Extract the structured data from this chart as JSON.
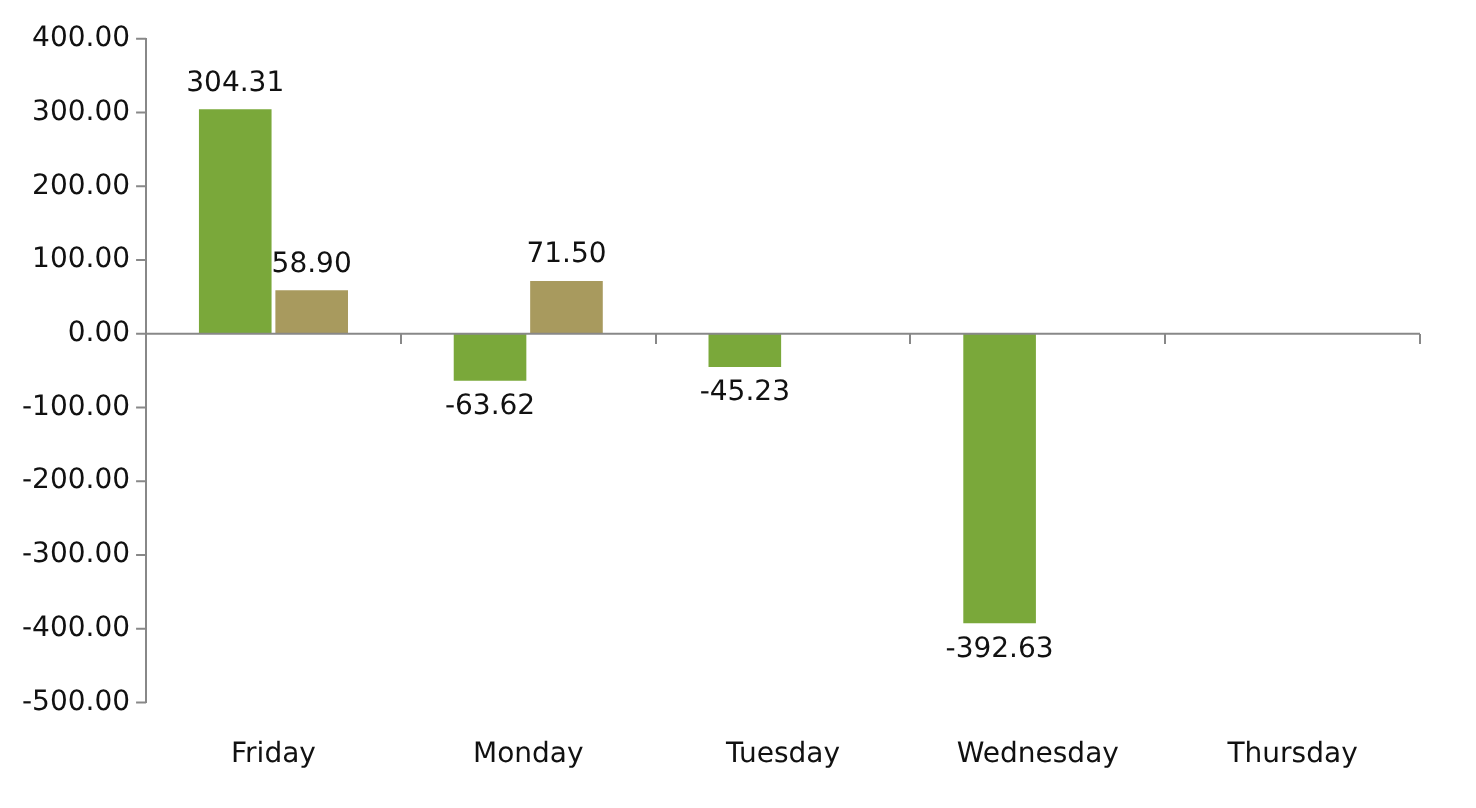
{
  "chart_data": {
    "type": "bar",
    "categories": [
      "Friday",
      "Monday",
      "Tuesday",
      "Wednesday",
      "Thursday"
    ],
    "series": [
      {
        "color": "#7aa83a",
        "values": [
          304.31,
          -63.62,
          -45.23,
          -392.63,
          null
        ],
        "value_labels": [
          "304.31",
          "-63.62",
          "-45.23",
          "-392.63",
          null
        ]
      },
      {
        "color": "#a89a5e",
        "values": [
          58.9,
          71.5,
          null,
          null,
          null
        ],
        "value_labels": [
          "58.90",
          "71.50",
          null,
          null,
          null
        ]
      }
    ],
    "ylim": [
      -500,
      400
    ],
    "yticks": [
      {
        "value": -500,
        "label": "-500.00"
      },
      {
        "value": -400,
        "label": "-400.00"
      },
      {
        "value": -300,
        "label": "-300.00"
      },
      {
        "value": -200,
        "label": "-200.00"
      },
      {
        "value": -100,
        "label": "-100.00"
      },
      {
        "value": 0,
        "label": "0.00"
      },
      {
        "value": 100,
        "label": "100.00"
      },
      {
        "value": 200,
        "label": "200.00"
      },
      {
        "value": 300,
        "label": "300.00"
      },
      {
        "value": 400,
        "label": "400.00"
      }
    ],
    "ref_lines": [
      {
        "axis": "y",
        "value": 0,
        "color": "#888888"
      }
    ],
    "grid": false,
    "legend": false
  }
}
